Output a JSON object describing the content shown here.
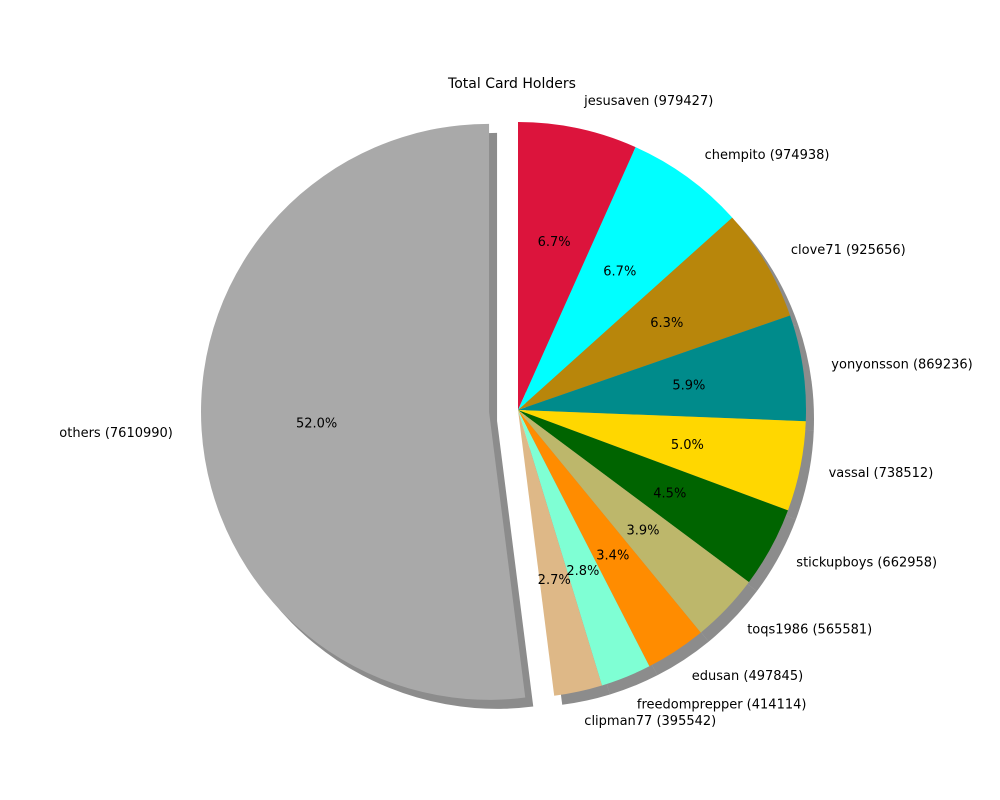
{
  "chart_data": {
    "type": "pie",
    "title": "Total Card Holders",
    "slices": [
      {
        "label": "jesusaven (979427)",
        "value": 979427,
        "pct": "6.7%",
        "color": "#DC143C"
      },
      {
        "label": "chempito (974938)",
        "value": 974938,
        "pct": "6.7%",
        "color": "#00FFFF"
      },
      {
        "label": "clove71 (925656)",
        "value": 925656,
        "pct": "6.3%",
        "color": "#B8860B"
      },
      {
        "label": "yonyonsson (869236)",
        "value": 869236,
        "pct": "5.9%",
        "color": "#008B8B"
      },
      {
        "label": "vassal (738512)",
        "value": 738512,
        "pct": "5.0%",
        "color": "#FFD700"
      },
      {
        "label": "stickupboys (662958)",
        "value": 662958,
        "pct": "4.5%",
        "color": "#006400"
      },
      {
        "label": "toqs1986 (565581)",
        "value": 565581,
        "pct": "3.9%",
        "color": "#BDB76B"
      },
      {
        "label": "edusan (497845)",
        "value": 497845,
        "pct": "3.4%",
        "color": "#FF8C00"
      },
      {
        "label": "freedomprepper (414114)",
        "value": 414114,
        "pct": "2.8%",
        "color": "#7FFFD4"
      },
      {
        "label": "clipman77 (395542)",
        "value": 395542,
        "pct": "2.7%",
        "color": "#DEB887"
      },
      {
        "label": "others (7610990)",
        "value": 7610990,
        "pct": "52.0%",
        "color": "#A9A9A9",
        "exploded": true
      }
    ],
    "start_angle": "top",
    "direction": "clockwise",
    "shadow": true
  }
}
